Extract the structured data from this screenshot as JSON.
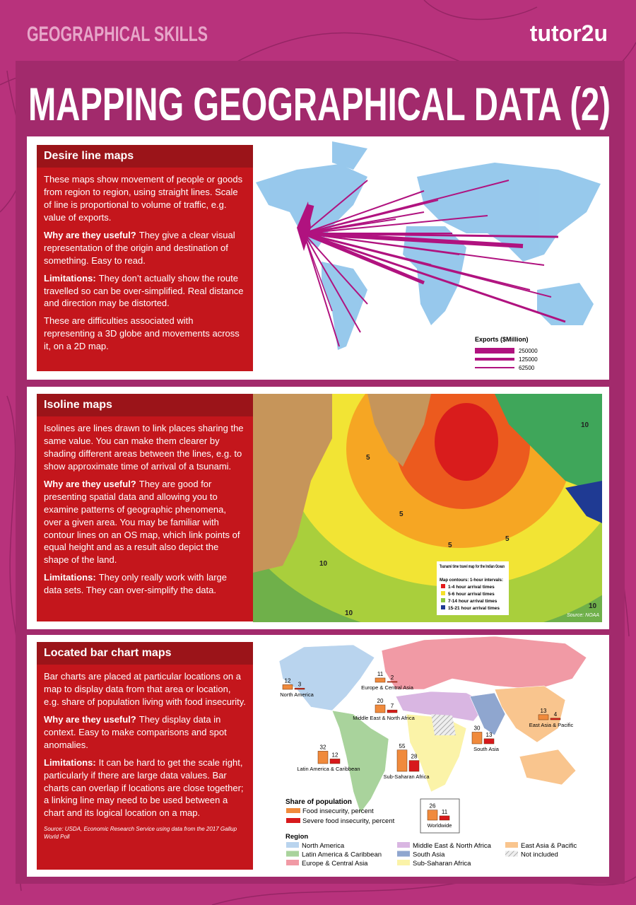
{
  "header": {
    "section": "GEOGRAPHICAL SKILLS",
    "brand": "tutor2u",
    "title": "MAPPING GEOGRAPHICAL DATA (2)"
  },
  "panels": [
    {
      "heading": "Desire line maps",
      "paragraphs": [
        {
          "text": "These maps show movement of people or goods from region to region, using straight lines. Scale of line is proportional to volume of traffic, e.g. value of exports."
        },
        {
          "lead": "Why are they useful?",
          "text": "They give a clear visual representation of the origin and destination of something. Easy to read."
        },
        {
          "lead": "Limitations:",
          "text": "They don’t actually show the route travelled so can be over-simplified. Real distance and direction may be distorted."
        },
        {
          "text": "These are difficulties associated with representing a 3D globe and movements across it, on a 2D map."
        }
      ]
    },
    {
      "heading": "Isoline maps",
      "paragraphs": [
        {
          "text": "Isolines are lines drawn to link places sharing the same value. You can make them clearer by shading different areas between the lines, e.g. to show approximate time of arrival of a tsunami."
        },
        {
          "lead": "Why are they useful?",
          "text": "They are good for presenting spatial data and allowing you to examine patterns of geographic phenomena, over a given area. You may be familiar with contour lines on an OS map, which link points of equal height and as a result also depict the shape of the land."
        },
        {
          "lead": "Limitations:",
          "text": "They only really work with large data sets. They can over-simplify the data."
        }
      ]
    },
    {
      "heading": "Located bar chart maps",
      "paragraphs": [
        {
          "text": "Bar charts are placed at particular locations on a map to display data from that area or location, e.g. share of population living with food insecurity."
        },
        {
          "lead": "Why are they useful?",
          "text": "They display data in context. Easy to make comparisons and spot anomalies."
        },
        {
          "lead": "Limitations:",
          "text": "It can be hard to get the scale right, particularly if there are large data values. Bar charts can overlap if locations are close together; a linking line may need to be used between a chart and its logical location on a map."
        }
      ],
      "source": "Source: USDA, Economic Research Service using data from the 2017 Gallup World Poll"
    }
  ],
  "desire_map": {
    "legend_title": "Exports ($Million)",
    "legend": [
      250000,
      125000,
      62500
    ],
    "color": "#b0127f"
  },
  "isoline_map": {
    "title": "Tsunami time travel map for the Indian Ocean",
    "subtitle": "Map contours: 1-hour intervals:",
    "items": [
      {
        "label": "1-4 hour arrival times",
        "color": "#e31a1c"
      },
      {
        "label": "5-6 hour arrival times",
        "color": "#f5e02a"
      },
      {
        "label": "7-14 hour arrival times",
        "color": "#8dc63f"
      },
      {
        "label": "15-21 hour arrival times",
        "color": "#1f3a93"
      }
    ],
    "contour_labels": [
      5,
      5,
      5,
      5,
      10,
      10,
      10,
      10
    ],
    "source": "Source: NOAA"
  },
  "bar_map": {
    "legend_title": "Share of population",
    "series": [
      {
        "name": "Food insecurity, percent",
        "color": "#f08a3c"
      },
      {
        "name": "Severe food insecurity, percent",
        "color": "#d7191c"
      }
    ],
    "regions": [
      {
        "name": "North America",
        "values": [
          12,
          3
        ]
      },
      {
        "name": "Europe & Central Asia",
        "values": [
          11,
          2
        ]
      },
      {
        "name": "Middle East & North Africa",
        "values": [
          20,
          7
        ]
      },
      {
        "name": "Latin America & Caribbean",
        "values": [
          32,
          12
        ]
      },
      {
        "name": "Sub-Saharan Africa",
        "values": [
          55,
          28
        ]
      },
      {
        "name": "South Asia",
        "values": [
          30,
          13
        ]
      },
      {
        "name": "East Asia & Pacific",
        "values": [
          13,
          4
        ]
      },
      {
        "name": "Worldwide",
        "values": [
          26,
          11
        ]
      }
    ],
    "region_legend_title": "Region",
    "region_legend": [
      {
        "name": "North America",
        "color": "#b9d4ee"
      },
      {
        "name": "Latin America & Caribbean",
        "color": "#a9d39c"
      },
      {
        "name": "Europe & Central Asia",
        "color": "#f19aa5"
      },
      {
        "name": "Middle East & North Africa",
        "color": "#d9b6e2"
      },
      {
        "name": "South Asia",
        "color": "#8fa6cf"
      },
      {
        "name": "Sub-Saharan Africa",
        "color": "#fbf3a8"
      },
      {
        "name": "East Asia & Pacific",
        "color": "#f9c58e"
      },
      {
        "name": "Not included",
        "color": "#dddddd"
      }
    ]
  }
}
